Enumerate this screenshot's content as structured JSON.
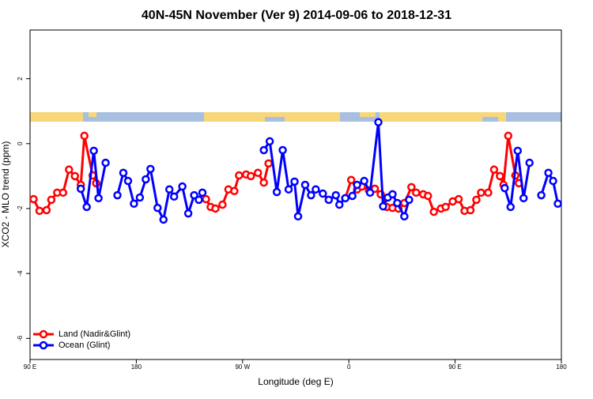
{
  "chart_data": {
    "type": "line",
    "title": "40N-45N November (Ver 9)   2014-09-06 to 2018-12-31",
    "x_label": "Longitude (deg E)",
    "y_label": "XCO2 - MLO trend (ppm)",
    "xlim": [
      90,
      540
    ],
    "ylim": [
      -6.65,
      3.5
    ],
    "xticks": [
      {
        "value": 90,
        "label": "90 E"
      },
      180,
      {
        "value": 270,
        "label": "90 W"
      },
      {
        "value": 360,
        "label": "0"
      },
      {
        "value": 450,
        "label": "90 E"
      },
      {
        "value": 540,
        "label": "180"
      }
    ],
    "yticks": [
      -6,
      -4,
      -2,
      0,
      2
    ],
    "legend": "bottom-left",
    "series": [
      {
        "name": "Land (Nadir&Glint)",
        "color": "#ff0000",
        "x": [
          93,
          98,
          104,
          108,
          113,
          118,
          123,
          128,
          133,
          136,
          143,
          146,
          null,
          239,
          243,
          247,
          253,
          258,
          263,
          267,
          273,
          277,
          283,
          288,
          292,
          null,
          357,
          362,
          367,
          371,
          377,
          382,
          387,
          392,
          397,
          402,
          407,
          413,
          417,
          423,
          427,
          432,
          438,
          442,
          448,
          453,
          458,
          463,
          468,
          472,
          478,
          483,
          488,
          491,
          495,
          501,
          504
        ],
        "values": [
          -1.71,
          -2.07,
          -2.05,
          -1.73,
          -1.51,
          -1.51,
          -0.8,
          -1.0,
          -1.27,
          0.24,
          -0.98,
          -1.22,
          null,
          -1.71,
          -1.95,
          -2.0,
          -1.88,
          -1.41,
          -1.46,
          -0.98,
          -0.95,
          -1.0,
          -0.9,
          -1.2,
          -0.61,
          null,
          -1.68,
          -1.12,
          -1.41,
          -1.32,
          -1.44,
          -1.39,
          -1.56,
          -1.95,
          -1.98,
          -2.0,
          -1.83,
          -1.34,
          -1.51,
          -1.56,
          -1.61,
          -2.1,
          -2.0,
          -1.95,
          -1.78,
          -1.71,
          -2.07,
          -2.05,
          -1.73,
          -1.51,
          -1.51,
          -0.8,
          -1.0,
          -1.27,
          0.24,
          -0.98,
          -1.22
        ]
      },
      {
        "name": "Ocean (Glint)",
        "color": "#0000ff",
        "x": [
          133,
          138,
          144,
          148,
          154,
          null,
          164,
          169,
          173,
          178,
          183,
          188,
          192,
          198,
          203,
          208,
          212,
          219,
          224,
          229,
          233,
          236,
          null,
          288,
          293,
          299,
          304,
          309,
          314,
          317,
          323,
          328,
          332,
          338,
          343,
          349,
          352,
          357,
          363,
          367,
          373,
          378,
          385,
          389,
          393,
          397,
          401,
          407,
          411,
          null,
          492,
          497,
          503,
          508,
          513,
          null,
          523,
          529,
          533,
          537
        ],
        "values": [
          -1.39,
          -1.95,
          -0.22,
          -1.68,
          -0.59,
          null,
          -1.59,
          -0.9,
          -1.15,
          -1.85,
          -1.66,
          -1.1,
          -0.78,
          -1.98,
          -2.34,
          -1.41,
          -1.63,
          -1.32,
          -2.15,
          -1.59,
          -1.73,
          -1.51,
          null,
          -0.2,
          0.07,
          -1.49,
          -0.2,
          -1.41,
          -1.17,
          -2.24,
          -1.27,
          -1.59,
          -1.41,
          -1.54,
          -1.73,
          -1.59,
          -1.88,
          -1.68,
          -1.61,
          -1.27,
          -1.15,
          -1.51,
          0.66,
          -1.93,
          -1.66,
          -1.56,
          -1.83,
          -2.24,
          -1.73,
          null,
          -1.37,
          -1.95,
          -0.22,
          -1.68,
          -0.59,
          null,
          -1.59,
          -0.9,
          -1.15,
          -1.85
        ]
      }
    ]
  }
}
